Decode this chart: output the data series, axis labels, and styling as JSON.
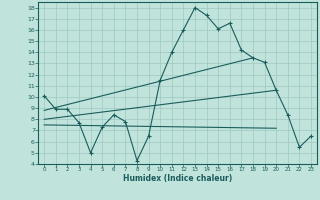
{
  "xlabel": "Humidex (Indice chaleur)",
  "xlim": [
    -0.5,
    23.5
  ],
  "ylim": [
    4,
    18.5
  ],
  "yticks": [
    4,
    5,
    6,
    7,
    8,
    9,
    10,
    11,
    12,
    13,
    14,
    15,
    16,
    17,
    18
  ],
  "xticks": [
    0,
    1,
    2,
    3,
    4,
    5,
    6,
    7,
    8,
    9,
    10,
    11,
    12,
    13,
    14,
    15,
    16,
    17,
    18,
    19,
    20,
    21,
    22,
    23
  ],
  "bg_color": "#c0e4dc",
  "line_color": "#1a5c5c",
  "grid_color": "#a0c8c0",
  "line1_x": [
    0,
    1,
    2,
    3,
    4,
    5,
    6,
    7,
    8,
    9,
    10,
    11,
    12,
    13,
    14,
    15,
    16,
    17,
    18,
    19,
    20,
    21,
    22,
    23
  ],
  "line1_y": [
    10.1,
    8.9,
    8.9,
    7.7,
    5.0,
    7.3,
    8.4,
    7.8,
    4.3,
    6.5,
    11.5,
    14.0,
    16.0,
    18.0,
    17.3,
    16.1,
    16.6,
    14.2,
    13.5,
    13.1,
    10.6,
    8.4,
    5.5,
    6.5
  ],
  "line2_x": [
    0,
    18
  ],
  "line2_y": [
    8.8,
    13.5
  ],
  "line3_x": [
    0,
    20
  ],
  "line3_y": [
    8.0,
    10.6
  ],
  "line4_x": [
    0,
    20
  ],
  "line4_y": [
    7.5,
    7.2
  ]
}
